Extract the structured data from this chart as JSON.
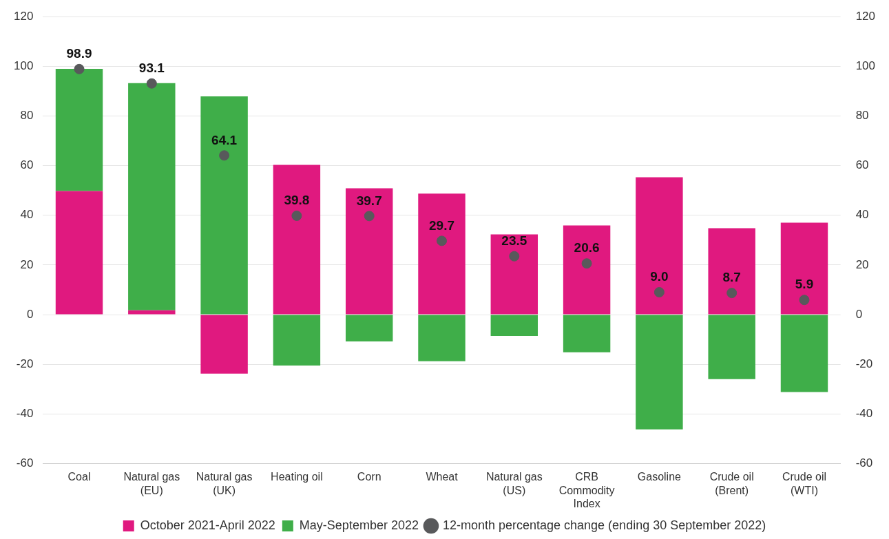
{
  "chart_data": {
    "type": "bar",
    "stacked": true,
    "categories": [
      "Coal",
      "Natural gas (EU)",
      "Natural gas (UK)",
      "Heating oil",
      "Corn",
      "Wheat",
      "Natural gas (US)",
      "CRB Commodity Index",
      "Gasoline",
      "Crude oil (Brent)",
      "Crude oil (WTI)"
    ],
    "series": [
      {
        "name": "October 2021-April 2022",
        "color": "#e0197f",
        "values": [
          49.8,
          1.7,
          -23.8,
          60.3,
          50.9,
          48.7,
          32.3,
          35.9,
          55.3,
          34.8,
          37.0
        ]
      },
      {
        "name": "May-September 2022",
        "color": "#3fae49",
        "values": [
          49.2,
          91.5,
          87.9,
          -20.5,
          -10.8,
          -18.8,
          -8.6,
          -15.2,
          -46.2,
          -26.0,
          -31.2
        ]
      },
      {
        "name": "12-month percentage change (ending 30 September 2022)",
        "type": "scatter",
        "color": "#58595b",
        "marker": "circle",
        "x": [
          "Coal",
          "Natural gas (EU)",
          "Natural gas (UK)",
          "Heating oil",
          "Corn",
          "Wheat",
          "Natural gas (US)",
          "CRB Commodity Index",
          "Gasoline",
          "Crude oil (Brent)",
          "Crude oil (WTI)"
        ],
        "values": [
          98.9,
          93.1,
          64.1,
          39.8,
          39.7,
          29.7,
          23.5,
          20.6,
          9.0,
          8.7,
          5.9
        ],
        "value_labels": [
          "98.9",
          "93.1",
          "64.1",
          "39.8",
          "39.7",
          "29.7",
          "23.5",
          "20.6",
          "9.0",
          "8.7",
          "5.9"
        ]
      }
    ],
    "ylim": [
      -60,
      120
    ],
    "yticks": [
      -60,
      -40,
      -20,
      0,
      20,
      40,
      60,
      80,
      100,
      120
    ],
    "y2lim": [
      -60,
      120
    ],
    "y2ticks": [
      -60,
      -40,
      -20,
      0,
      20,
      40,
      60,
      80,
      100,
      120
    ],
    "grid": "y",
    "legend": "bottom"
  }
}
